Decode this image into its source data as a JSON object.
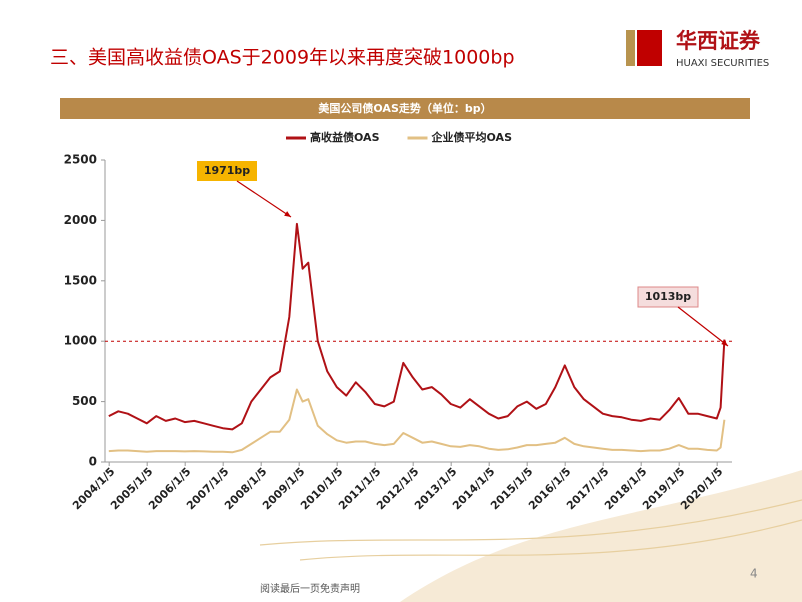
{
  "header": {
    "title": "三、美国高收益债OAS于2009年以来再度突破1000bp",
    "logo_cn": "华西证券",
    "logo_en": "HUAXI SECURITIES"
  },
  "chart_data": {
    "type": "line",
    "title": "美国公司债OAS走势（单位：bp）",
    "x": [
      2004.0,
      2004.25,
      2004.5,
      2004.75,
      2005.0,
      2005.25,
      2005.5,
      2005.75,
      2006.0,
      2006.25,
      2006.5,
      2006.75,
      2007.0,
      2007.25,
      2007.5,
      2007.75,
      2008.0,
      2008.25,
      2008.5,
      2008.75,
      2008.95,
      2009.1,
      2009.25,
      2009.5,
      2009.75,
      2010.0,
      2010.25,
      2010.5,
      2010.75,
      2011.0,
      2011.25,
      2011.5,
      2011.75,
      2012.0,
      2012.25,
      2012.5,
      2012.75,
      2013.0,
      2013.25,
      2013.5,
      2013.75,
      2014.0,
      2014.25,
      2014.5,
      2014.75,
      2015.0,
      2015.25,
      2015.5,
      2015.75,
      2016.0,
      2016.25,
      2016.5,
      2016.75,
      2017.0,
      2017.25,
      2017.5,
      2017.75,
      2018.0,
      2018.25,
      2018.5,
      2018.75,
      2019.0,
      2019.25,
      2019.5,
      2019.75,
      2020.0,
      2020.1,
      2020.2
    ],
    "series": [
      {
        "name": "高收益债OAS",
        "color": "#b01116",
        "values": [
          380,
          420,
          400,
          360,
          320,
          380,
          340,
          360,
          330,
          340,
          320,
          300,
          280,
          270,
          320,
          500,
          600,
          700,
          750,
          1200,
          1971,
          1600,
          1650,
          1000,
          750,
          620,
          550,
          660,
          580,
          480,
          460,
          500,
          820,
          700,
          600,
          620,
          560,
          480,
          450,
          520,
          460,
          400,
          360,
          380,
          460,
          500,
          440,
          480,
          620,
          800,
          620,
          520,
          460,
          400,
          380,
          370,
          350,
          340,
          360,
          350,
          430,
          530,
          400,
          400,
          380,
          360,
          450,
          1013
        ]
      },
      {
        "name": "企业债平均OAS",
        "color": "#e2c084",
        "values": [
          90,
          95,
          95,
          90,
          85,
          90,
          90,
          90,
          88,
          90,
          88,
          85,
          85,
          80,
          100,
          150,
          200,
          250,
          250,
          350,
          600,
          500,
          520,
          300,
          230,
          180,
          160,
          170,
          170,
          150,
          140,
          150,
          240,
          200,
          160,
          170,
          150,
          130,
          125,
          140,
          130,
          110,
          100,
          105,
          120,
          140,
          140,
          150,
          160,
          200,
          150,
          130,
          120,
          110,
          100,
          100,
          95,
          90,
          95,
          95,
          110,
          140,
          110,
          110,
          100,
          95,
          120,
          350
        ]
      }
    ],
    "xlim": [
      2003.9,
      2020.4
    ],
    "xticks": [
      {
        "value": 2004.01,
        "label": "2004/1/5"
      },
      {
        "value": 2005.01,
        "label": "2005/1/5"
      },
      {
        "value": 2006.01,
        "label": "2006/1/5"
      },
      {
        "value": 2007.01,
        "label": "2007/1/5"
      },
      {
        "value": 2008.01,
        "label": "2008/1/5"
      },
      {
        "value": 2009.01,
        "label": "2009/1/5"
      },
      {
        "value": 2010.01,
        "label": "2010/1/5"
      },
      {
        "value": 2011.01,
        "label": "2011/1/5"
      },
      {
        "value": 2012.01,
        "label": "2012/1/5"
      },
      {
        "value": 2013.01,
        "label": "2013/1/5"
      },
      {
        "value": 2014.01,
        "label": "2014/1/5"
      },
      {
        "value": 2015.01,
        "label": "2015/1/5"
      },
      {
        "value": 2016.01,
        "label": "2016/1/5"
      },
      {
        "value": 2017.01,
        "label": "2017/1/5"
      },
      {
        "value": 2018.01,
        "label": "2018/1/5"
      },
      {
        "value": 2019.01,
        "label": "2019/1/5"
      },
      {
        "value": 2020.01,
        "label": "2020/1/5"
      }
    ],
    "ylim": [
      0,
      2500
    ],
    "yticks": [
      0,
      500,
      1000,
      1500,
      2000,
      2500
    ],
    "ref_line": 1000,
    "ref_color": "#c00000",
    "annotations": [
      "1971bp",
      "1013bp"
    ]
  },
  "footer": {
    "disclaimer": "阅读最后一页免责声明",
    "page": "4"
  }
}
